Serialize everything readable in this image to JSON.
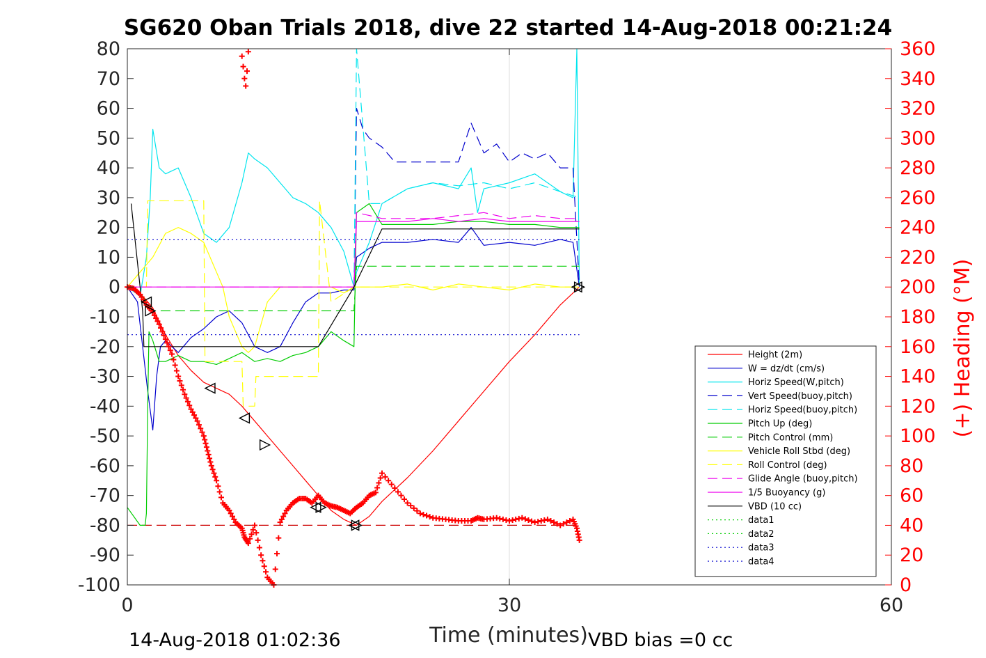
{
  "chart_data": {
    "type": "line",
    "title": "SG620 Oban Trials 2018, dive 22 started 14-Aug-2018 00:21:24",
    "xlabel": "Time (minutes)",
    "ylabel": "",
    "y2label": "(+) Heading (°M)",
    "xlim": [
      0,
      60
    ],
    "ylim": [
      -100,
      80
    ],
    "y2lim": [
      0,
      360
    ],
    "xticks": [
      "0",
      "30",
      "60"
    ],
    "xtick_values": [
      0,
      30,
      60
    ],
    "yticks": [
      "80",
      "70",
      "60",
      "50",
      "40",
      "30",
      "20",
      "10",
      "0",
      "-10",
      "-20",
      "-30",
      "-40",
      "-50",
      "-60",
      "-70",
      "-80",
      "-90",
      "-100"
    ],
    "ytick_values": [
      80,
      70,
      60,
      50,
      40,
      30,
      20,
      10,
      0,
      -10,
      -20,
      -30,
      -40,
      -50,
      -60,
      -70,
      -80,
      -90,
      -100
    ],
    "y2ticks": [
      "360",
      "340",
      "320",
      "300",
      "280",
      "260",
      "240",
      "220",
      "200",
      "180",
      "160",
      "140",
      "120",
      "100",
      "80",
      "60",
      "40",
      "20",
      "0"
    ],
    "y2tick_values": [
      360,
      340,
      320,
      300,
      280,
      260,
      240,
      220,
      200,
      180,
      160,
      140,
      120,
      100,
      80,
      60,
      40,
      20,
      0
    ],
    "grid": "x-only",
    "legend_position": "right",
    "footer_left": "14-Aug-2018 01:02:36",
    "footer_right": "VBD bias =0 cc",
    "series": [
      {
        "name": "Height (2m)",
        "color": "#ff0000",
        "dash": "solid",
        "axis": "left",
        "x": [
          0,
          1,
          2,
          3,
          4,
          5,
          6,
          7,
          8,
          9,
          10,
          11,
          12,
          13,
          14,
          15,
          16,
          17,
          18,
          19,
          20,
          22,
          24,
          26,
          28,
          30,
          32,
          34,
          35.5
        ],
        "y": [
          0,
          -2,
          -7,
          -16,
          -23,
          -28,
          -32,
          -34,
          -36,
          -40,
          -45,
          -50,
          -55,
          -60,
          -65,
          -70,
          -75,
          -78,
          -80,
          -77,
          -72,
          -64,
          -55,
          -45,
          -35,
          -25,
          -16,
          -6,
          0
        ]
      },
      {
        "name": "W = dz/dt (cm/s)",
        "color": "#0000cd",
        "dash": "solid",
        "axis": "left",
        "x": [
          0,
          0.8,
          1.2,
          1.6,
          2,
          2.3,
          2.6,
          3,
          4,
          5,
          6,
          7,
          8,
          9,
          10,
          11,
          12,
          13,
          14,
          15,
          16,
          17,
          17.8,
          18,
          19,
          20,
          22,
          24,
          26,
          27,
          28,
          30,
          32,
          34,
          35,
          35.5
        ],
        "y": [
          0,
          -5,
          -20,
          -35,
          -48,
          -30,
          -20,
          -18,
          -22,
          -17,
          -14,
          -10,
          -8,
          -12,
          -20,
          -22,
          -20,
          -12,
          -5,
          -2,
          -2,
          -1,
          -1,
          10,
          13,
          15,
          15,
          16,
          15,
          20,
          14,
          15,
          14,
          16,
          15,
          0
        ]
      },
      {
        "name": "Horiz Speed(W,pitch)",
        "color": "#00e5ee",
        "dash": "solid",
        "axis": "left",
        "x": [
          0,
          1,
          1.5,
          1.8,
          2,
          2.5,
          3,
          4,
          5,
          6,
          7,
          8,
          9,
          9.5,
          10,
          11,
          12,
          13,
          14,
          15,
          16,
          17,
          17.8,
          18,
          19,
          20,
          22,
          24,
          26,
          27,
          27.5,
          28,
          30,
          32,
          34,
          35,
          35.3,
          35.5
        ],
        "y": [
          0,
          -3,
          10,
          30,
          53,
          40,
          38,
          40,
          30,
          18,
          15,
          20,
          35,
          45,
          43,
          40,
          35,
          30,
          28,
          25,
          20,
          12,
          0,
          5,
          15,
          28,
          33,
          35,
          33,
          40,
          25,
          33,
          35,
          38,
          32,
          30,
          80,
          0
        ]
      },
      {
        "name": "Vert Speed(buoy,pitch)",
        "color": "#0000cd",
        "dash": "long",
        "axis": "left",
        "x": [
          17.8,
          18,
          18.5,
          19,
          20,
          21,
          22,
          24,
          26,
          27,
          28,
          29,
          30,
          31,
          32,
          33,
          34,
          35,
          35.5
        ],
        "y": [
          0,
          60,
          53,
          50,
          47,
          42,
          42,
          42,
          42,
          55,
          45,
          48,
          42,
          45,
          43,
          45,
          40,
          40,
          0
        ]
      },
      {
        "name": "Horiz Speed(buoy,pitch)",
        "color": "#00e5ee",
        "dash": "long",
        "axis": "left",
        "x": [
          17.8,
          18,
          19,
          20,
          22,
          24,
          26,
          28,
          30,
          32,
          34,
          35.5
        ],
        "y": [
          0,
          80,
          28,
          28,
          33,
          35,
          34,
          35,
          33,
          35,
          32,
          30
        ]
      },
      {
        "name": "Pitch Up (deg)",
        "color": "#00cc00",
        "dash": "solid",
        "axis": "left",
        "x": [
          0,
          1,
          1.4,
          1.5,
          1.6,
          1.7,
          2,
          2.5,
          3,
          4,
          5,
          6,
          7,
          8,
          9,
          10,
          11,
          12,
          13,
          14,
          15,
          16,
          17,
          17.8,
          18,
          19,
          20,
          22,
          24,
          26,
          28,
          30,
          32,
          34,
          35.5
        ],
        "y": [
          -74,
          -80,
          -80,
          -76,
          -40,
          -15,
          -18,
          -25,
          -25,
          -23,
          -25,
          -25,
          -26,
          -24,
          -22,
          -25,
          -24,
          -25,
          -23,
          -22,
          -20,
          -15,
          -18,
          -20,
          25,
          28,
          21,
          21,
          21,
          22,
          22,
          21,
          21,
          20,
          20
        ]
      },
      {
        "name": "Pitch Control (mm)",
        "color": "#00cc00",
        "dash": "long",
        "axis": "left",
        "x": [
          0,
          1,
          2,
          3,
          16,
          17,
          17.8,
          18,
          19,
          35.5
        ],
        "y": [
          0,
          -2,
          -8,
          -8,
          -8,
          -8,
          -8,
          7,
          7,
          7
        ]
      },
      {
        "name": "Vehicle Roll Stbd (deg)",
        "color": "#ffff00",
        "dash": "solid",
        "axis": "left",
        "x": [
          0,
          1,
          2,
          3,
          4,
          5,
          6,
          7,
          7.5,
          8,
          9,
          9.5,
          10,
          11,
          12,
          13,
          14,
          15,
          16,
          17,
          17.8,
          18,
          19,
          20,
          22,
          24,
          26,
          28,
          30,
          32,
          34,
          35.5
        ],
        "y": [
          0,
          5,
          10,
          18,
          20,
          18,
          15,
          5,
          0,
          -10,
          -20,
          -22,
          -20,
          -5,
          0,
          0,
          0,
          0,
          0,
          -2,
          0,
          0,
          0,
          0,
          1,
          -1,
          1,
          0,
          -1,
          1,
          0,
          0
        ]
      },
      {
        "name": "Roll Control (deg)",
        "color": "#ffff00",
        "dash": "long",
        "axis": "left",
        "x": [
          0,
          1,
          1.5,
          1.6,
          6,
          6.1,
          9,
          9.1,
          10,
          10.1,
          15,
          15.1,
          16,
          17.8,
          35.5
        ],
        "y": [
          0,
          0,
          0,
          29,
          29,
          -25,
          -25,
          -40,
          -40,
          -30,
          -30,
          29,
          -5,
          0,
          0
        ]
      },
      {
        "name": "Glide Angle (buoy,pitch)",
        "color": "#ee00ee",
        "dash": "long",
        "axis": "left",
        "x": [
          0,
          17.8,
          18,
          20,
          22,
          24,
          26,
          28,
          30,
          32,
          34,
          35.5
        ],
        "y": [
          0,
          0,
          25,
          23,
          23,
          23,
          24,
          25,
          23,
          24,
          23,
          23
        ]
      },
      {
        "name": "1/5 Buoyancy (g)",
        "color": "#ee00ee",
        "dash": "solid",
        "axis": "left",
        "x": [
          0,
          17.8,
          18,
          20,
          22,
          24,
          26,
          28,
          30,
          32,
          34,
          35.5
        ],
        "y": [
          0,
          0,
          22,
          22,
          22,
          23,
          22,
          23,
          22,
          22,
          22,
          22
        ]
      },
      {
        "name": "VBD (10 cc)",
        "color": "#000000",
        "dash": "solid",
        "axis": "left",
        "x": [
          0.3,
          1.2,
          1.3,
          15,
          17.8,
          20,
          35.5
        ],
        "y": [
          28,
          -8,
          -20,
          -20,
          0,
          19.5,
          19.5
        ]
      },
      {
        "name": "data1",
        "color": "#00cc00",
        "dash": "dot",
        "axis": "left",
        "x": [],
        "y": []
      },
      {
        "name": "data2",
        "color": "#00cc00",
        "dash": "dot",
        "axis": "left",
        "x": [],
        "y": []
      },
      {
        "name": "data3",
        "color": "#0000cd",
        "dash": "dot",
        "axis": "left",
        "x": [],
        "y": []
      },
      {
        "name": "data4",
        "color": "#0000cd",
        "dash": "dot",
        "axis": "left",
        "x": [
          0,
          35.5
        ],
        "y": [
          16,
          16
        ],
        "x2": [
          0,
          35.5
        ],
        "y2": [
          -16,
          -16
        ]
      }
    ],
    "heading": {
      "color": "#ff0000",
      "marker": "+",
      "axis": "right",
      "x": [
        0,
        0.5,
        1,
        1.5,
        2,
        2.5,
        3,
        3.5,
        4,
        4.5,
        5,
        5.5,
        6,
        6.3,
        6.6,
        7,
        7.5,
        8,
        8.5,
        9,
        9.2,
        9.5,
        10,
        10.5,
        11,
        11.5,
        12,
        12.5,
        13,
        13.5,
        14,
        14.5,
        15,
        15.5,
        16,
        16.5,
        17,
        17.5,
        18,
        18.5,
        19,
        19.5,
        20,
        21,
        22,
        23,
        24,
        25,
        26,
        27,
        27.5,
        28,
        29,
        30,
        31,
        32,
        33,
        34,
        35,
        35.3,
        35.5
      ],
      "y": [
        200,
        199,
        195,
        188,
        183,
        175,
        165,
        155,
        140,
        128,
        118,
        110,
        100,
        90,
        80,
        70,
        55,
        50,
        42,
        38,
        32,
        28,
        40,
        20,
        5,
        0,
        42,
        50,
        55,
        58,
        58,
        55,
        60,
        55,
        53,
        52,
        50,
        48,
        52,
        55,
        60,
        62,
        75,
        65,
        55,
        48,
        45,
        44,
        43,
        43,
        45,
        44,
        45,
        43,
        45,
        42,
        44,
        40,
        44,
        38,
        30
      ]
    },
    "heading_cluster": {
      "x": [
        9.0,
        9.1,
        9.2,
        9.3,
        9.4,
        9.5
      ],
      "y": [
        355,
        348,
        340,
        335,
        345,
        358
      ]
    },
    "dashed_ref": {
      "color": "#cc0000",
      "dash": "long",
      "x": [
        0,
        35.5
      ],
      "y": [
        -80,
        -80
      ]
    },
    "triangle_markers": [
      {
        "x": 1.5,
        "y": -5,
        "dir": "left"
      },
      {
        "x": 1.8,
        "y": -8,
        "dir": "right"
      },
      {
        "x": 6.5,
        "y": -34,
        "dir": "left"
      },
      {
        "x": 9.2,
        "y": -44,
        "dir": "left"
      },
      {
        "x": 10.8,
        "y": -53,
        "dir": "right"
      },
      {
        "x": 14.8,
        "y": -74,
        "dir": "left"
      },
      {
        "x": 15.2,
        "y": -74,
        "dir": "right"
      },
      {
        "x": 17.8,
        "y": -80,
        "dir": "left"
      },
      {
        "x": 18,
        "y": -80,
        "dir": "right"
      },
      {
        "x": 35.3,
        "y": 0,
        "dir": "left"
      },
      {
        "x": 35.5,
        "y": 0,
        "dir": "right"
      }
    ]
  }
}
